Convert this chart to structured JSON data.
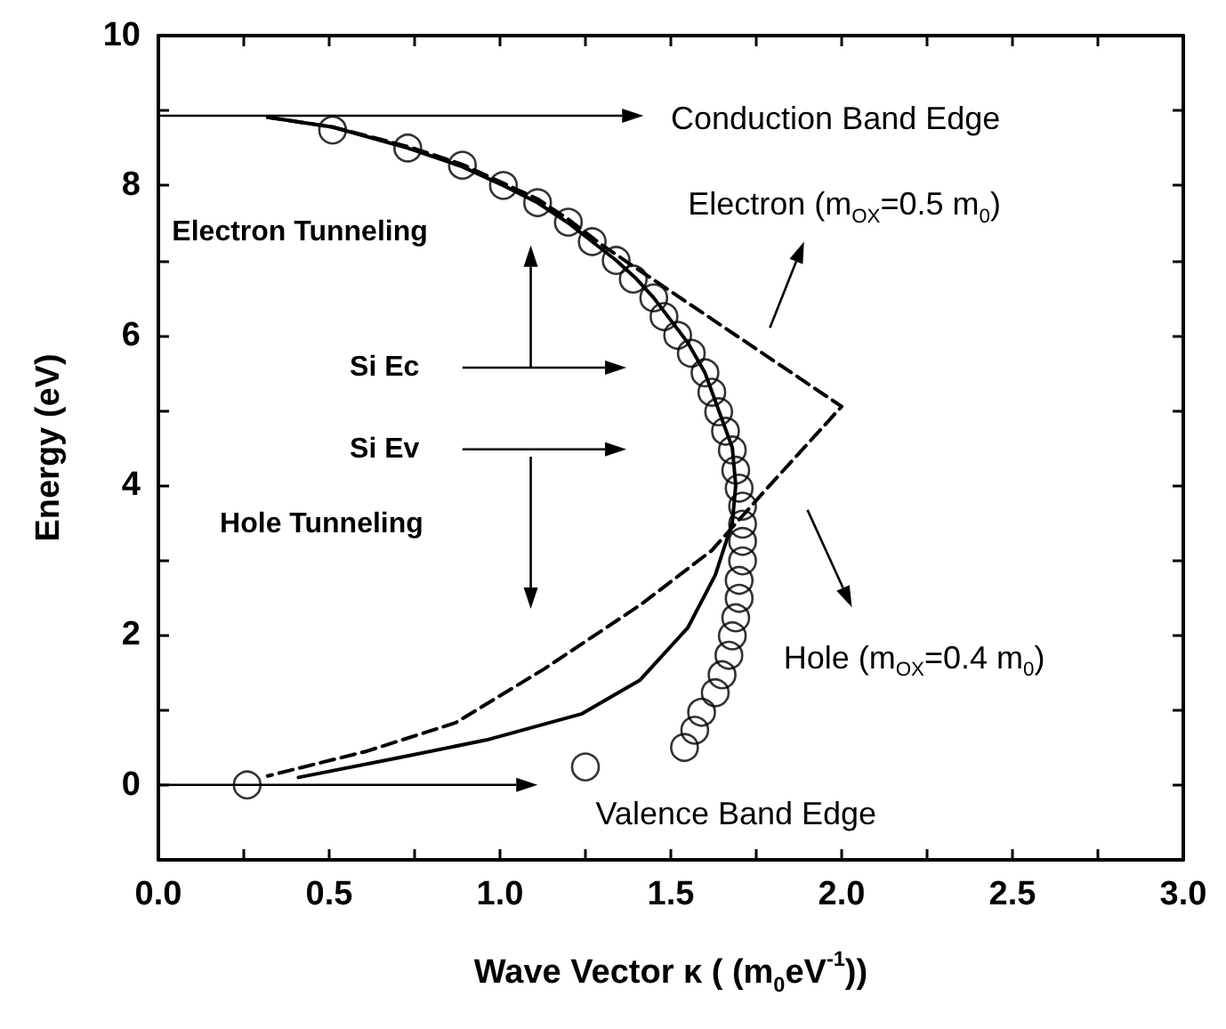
{
  "chart_data": {
    "type": "line",
    "xlabel": "Wave Vector κ ( (m$_{0}$eV$^{-1}$))",
    "ylabel": "Energy (eV)",
    "xlim": [
      0,
      3
    ],
    "ylim": [
      -1,
      10
    ],
    "xticks": [
      {
        "value": 0,
        "label": "0.0"
      },
      {
        "value": 0.25,
        "label": null
      },
      {
        "value": 0.5,
        "label": "0.5"
      },
      {
        "value": 0.75,
        "label": null
      },
      {
        "value": 1,
        "label": "1.0"
      },
      {
        "value": 1.25,
        "label": null
      },
      {
        "value": 1.5,
        "label": "1.5"
      },
      {
        "value": 1.75,
        "label": null
      },
      {
        "value": 2,
        "label": "2.0"
      },
      {
        "value": 2.25,
        "label": null
      },
      {
        "value": 2.5,
        "label": "2.5"
      },
      {
        "value": 2.75,
        "label": null
      },
      {
        "value": 3,
        "label": "3.0"
      }
    ],
    "yticks": [
      {
        "value": -1,
        "label": null
      },
      0,
      {
        "value": 1,
        "label": null
      },
      2,
      {
        "value": 3,
        "label": null
      },
      4,
      {
        "value": 5,
        "label": null
      },
      6,
      {
        "value": 7,
        "label": null
      },
      8,
      {
        "value": 9,
        "label": null
      },
      10
    ],
    "grid": false,
    "series": [
      {
        "type": "scatter",
        "marker": "circle",
        "color": "#000000",
        "x": [
          0.26,
          0.51,
          0.73,
          0.89,
          1.01,
          1.11,
          1.2,
          1.27,
          1.34,
          1.39,
          1.45,
          1.48,
          1.52,
          1.56,
          1.6,
          1.62,
          1.64,
          1.66,
          1.68,
          1.69,
          1.7,
          1.71,
          1.71,
          1.71,
          1.71,
          1.7,
          1.7,
          1.69,
          1.68,
          1.67,
          1.65,
          1.63,
          1.59,
          1.57,
          1.54,
          1.25
        ],
        "values": [
          0,
          8.74,
          8.5,
          8.27,
          8.0,
          7.77,
          7.51,
          7.25,
          7.0,
          6.75,
          6.5,
          6.25,
          6.0,
          5.76,
          5.5,
          5.24,
          4.98,
          4.72,
          4.47,
          4.2,
          3.96,
          3.72,
          3.48,
          3.25,
          2.99,
          2.73,
          2.49,
          2.23,
          1.99,
          1.73,
          1.47,
          1.23,
          0.97,
          0.73,
          0.5,
          0.24
        ]
      },
      {
        "marker": "none",
        "line_style": "solid",
        "color": "#000000",
        "x": [
          0.32,
          0.51,
          0.73,
          0.89,
          1.01,
          1.11,
          1.2,
          1.27,
          1.34,
          1.4,
          1.45,
          1.5,
          1.55,
          1.6,
          1.64,
          1.68,
          1.69,
          1.68,
          1.63,
          1.55,
          1.41,
          1.24,
          0.96,
          0.7,
          0.41
        ],
        "values": [
          8.91,
          8.78,
          8.5,
          8.25,
          8.0,
          7.77,
          7.5,
          7.25,
          7.0,
          6.75,
          6.5,
          6.2,
          5.9,
          5.5,
          5.0,
          4.5,
          4.0,
          3.5,
          2.8,
          2.1,
          1.4,
          0.95,
          0.6,
          0.36,
          0.1
        ]
      },
      {
        "marker": "none",
        "line_style": "dashed",
        "color": "#000000",
        "x": [
          0.32,
          0.51,
          0.73,
          0.89,
          1.01,
          1.11,
          1.2,
          1.3,
          2.0,
          1.77,
          1.62,
          1.41,
          1.13,
          0.87,
          0.61,
          0.32
        ],
        "values": [
          8.91,
          8.78,
          8.52,
          8.28,
          8.03,
          7.82,
          7.55,
          7.2,
          5.05,
          3.9,
          3.13,
          2.4,
          1.55,
          0.83,
          0.45,
          0.12
        ]
      }
    ],
    "annotations": [
      "Conduction Band Edge",
      "Electron (m$_{OX}$=0.5 m$_{0}$)",
      "Hole (m$_{OX}$=0.4 m$_{0}$)",
      "Valence Band Edge",
      "Electron Tunneling",
      "Si Ec",
      "Si Ev",
      "Hole Tunneling"
    ]
  }
}
